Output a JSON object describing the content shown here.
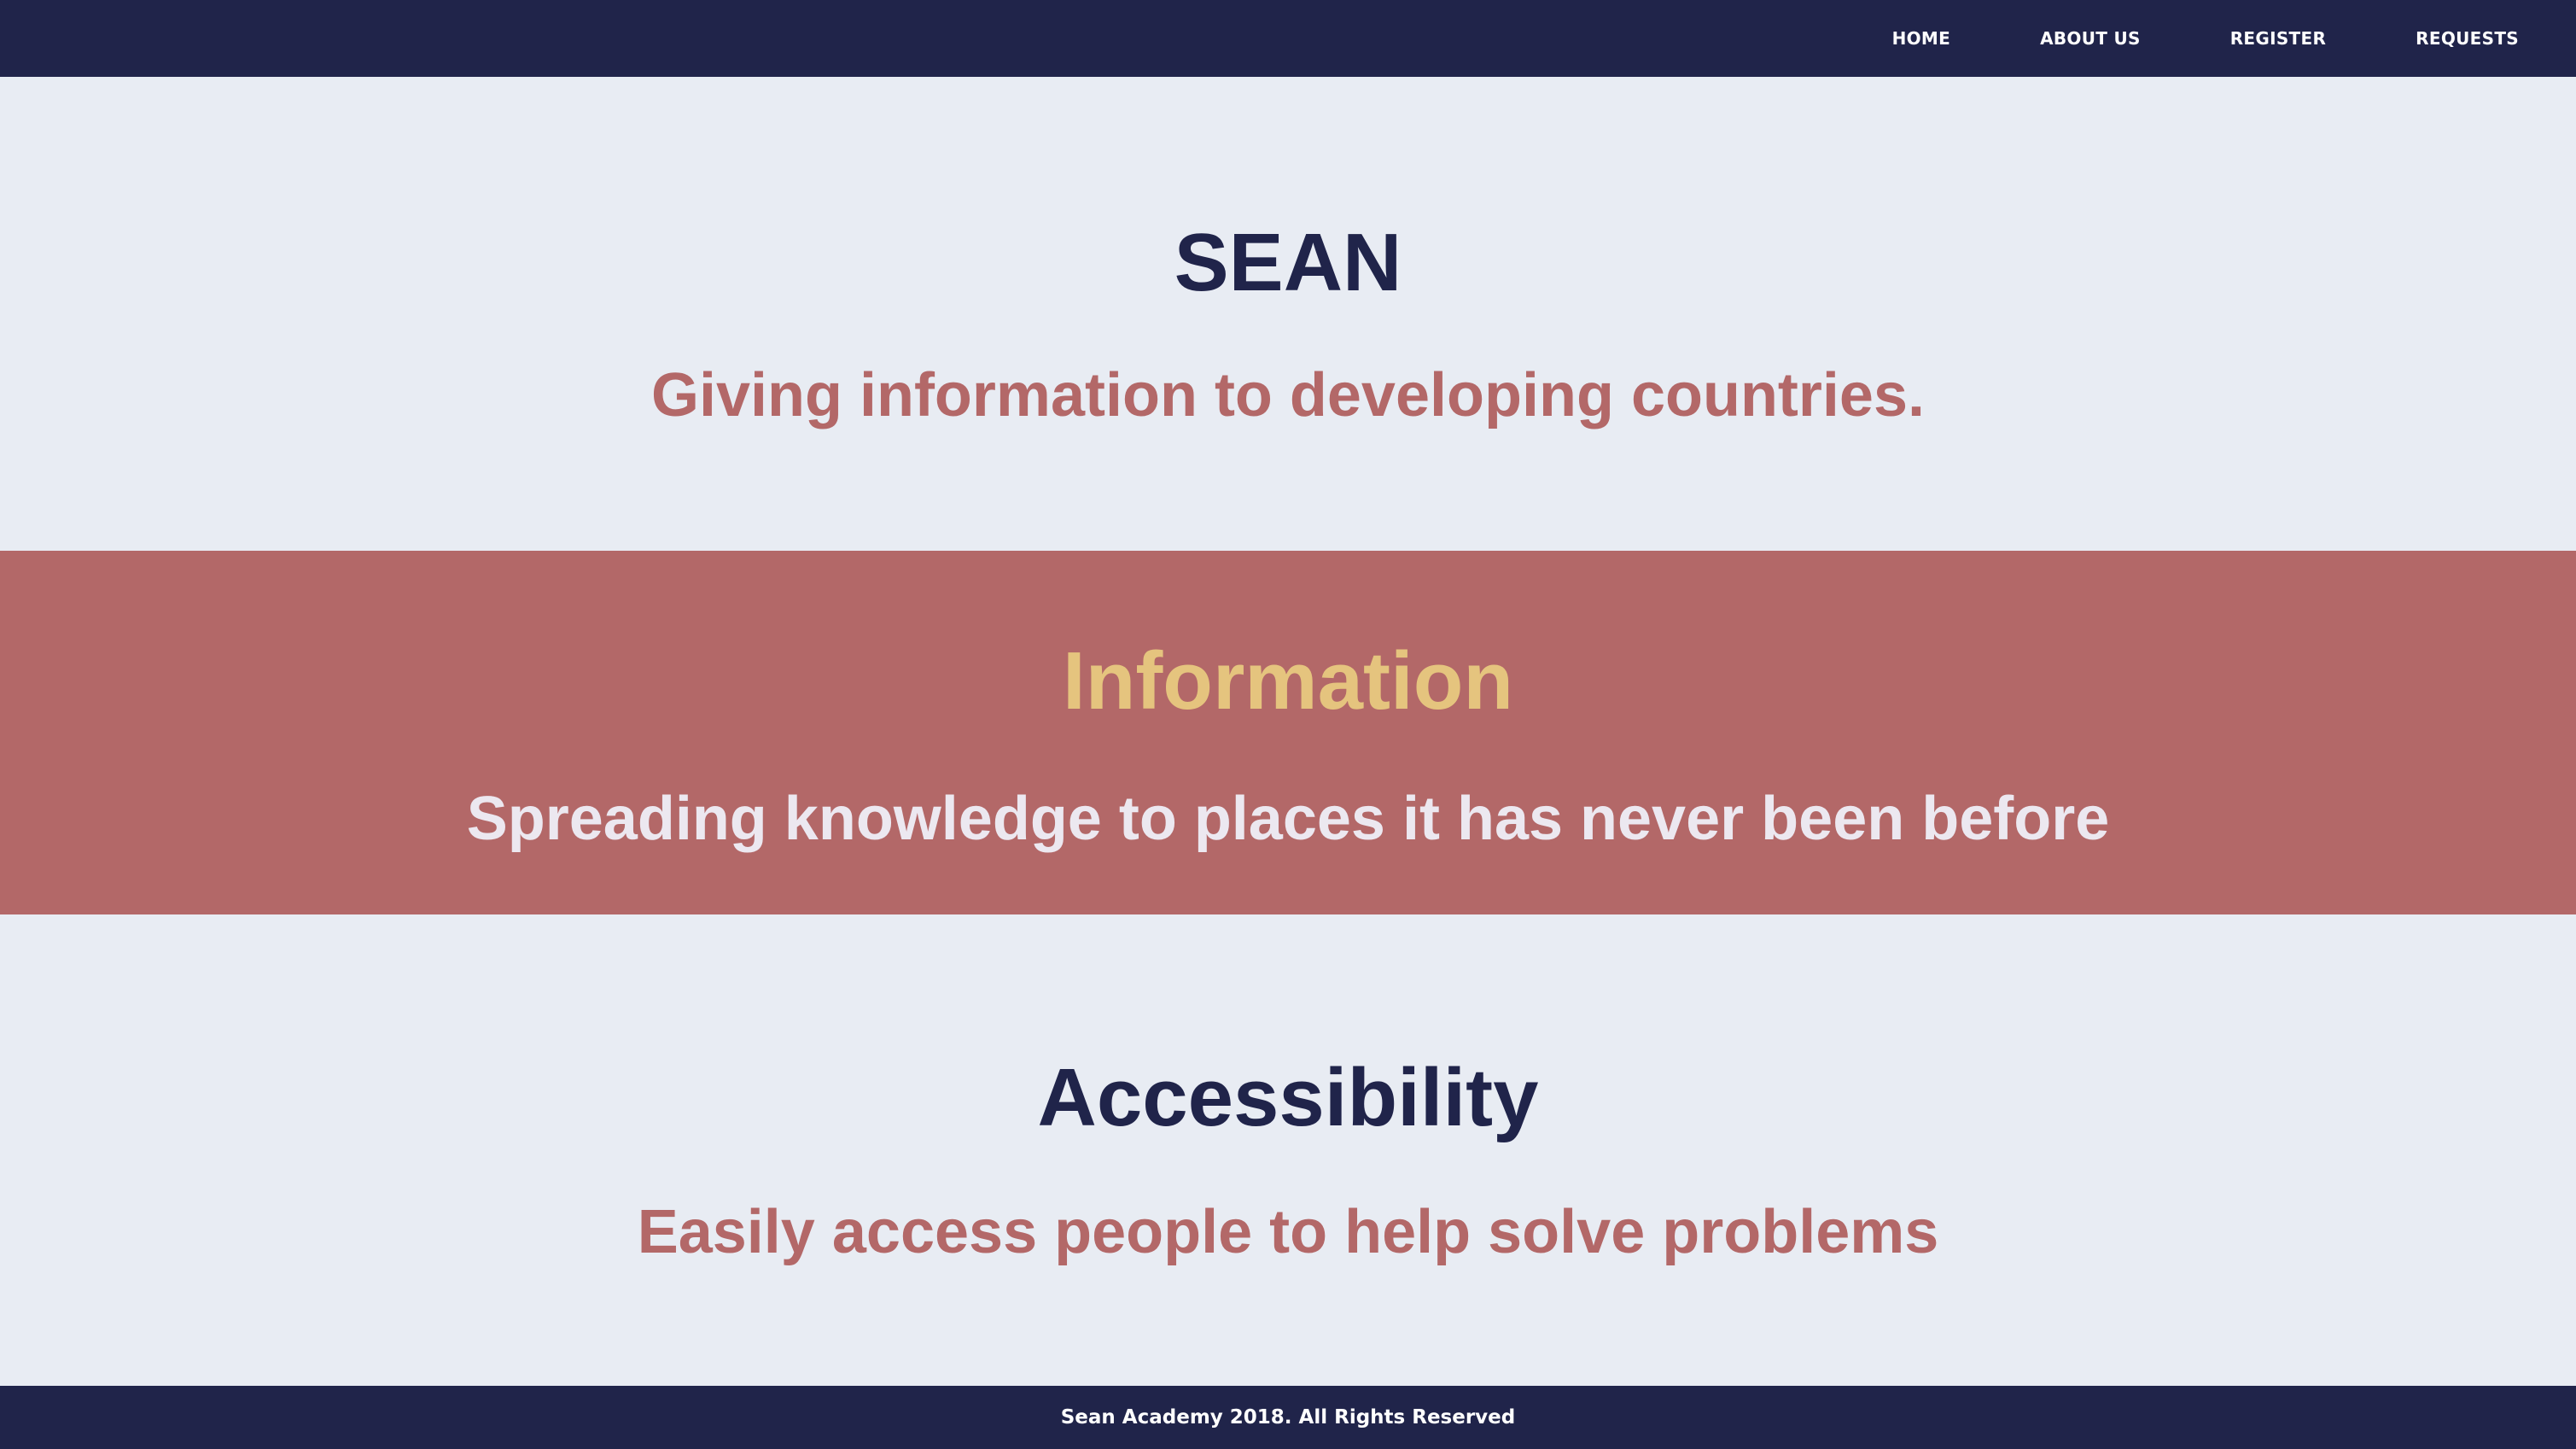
{
  "nav": {
    "items": [
      {
        "label": "HOME"
      },
      {
        "label": "ABOUT US"
      },
      {
        "label": "REGISTER"
      },
      {
        "label": "REQUESTS"
      }
    ]
  },
  "hero": {
    "title": "SEAN",
    "tagline": "Giving information to developing countries."
  },
  "info": {
    "title": "Information",
    "text": "Spreading knowledge to places it has never been before"
  },
  "accessibility": {
    "title": "Accessibility",
    "text": "Easily access people to help solve problems"
  },
  "footer": {
    "text": "Sean Academy 2018. All Rights Reserved"
  },
  "colors": {
    "navy": "#20244a",
    "rose": "#b36868",
    "gold": "#e5c47e",
    "background": "#e8ecf3"
  }
}
